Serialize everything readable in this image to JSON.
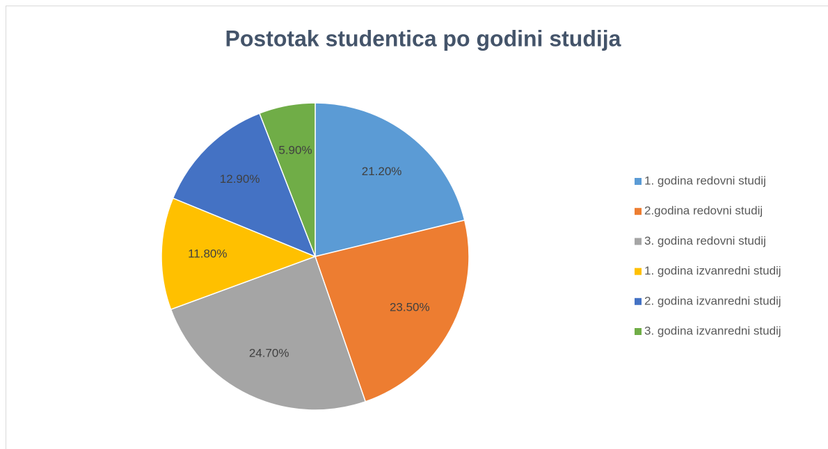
{
  "chart_data": {
    "type": "pie",
    "title": "Postotak studentica po godini studija",
    "categories": [
      "1. godina redovni studij",
      "2.godina redovni studij",
      "3. godina redovni studij",
      "1. godina izvanredni studij",
      "2. godina izvanredni studij",
      "3. godina izvanredni studij"
    ],
    "values": [
      21.2,
      23.5,
      24.7,
      11.8,
      12.9,
      5.9
    ],
    "value_labels": [
      "21.20%",
      "23.50%",
      "24.70%",
      "11.80%",
      "12.90%",
      "5.90%"
    ],
    "colors": [
      "#5b9bd5",
      "#ed7d31",
      "#a5a5a5",
      "#ffc000",
      "#4472c4",
      "#70ad47"
    ],
    "legend": "right"
  }
}
